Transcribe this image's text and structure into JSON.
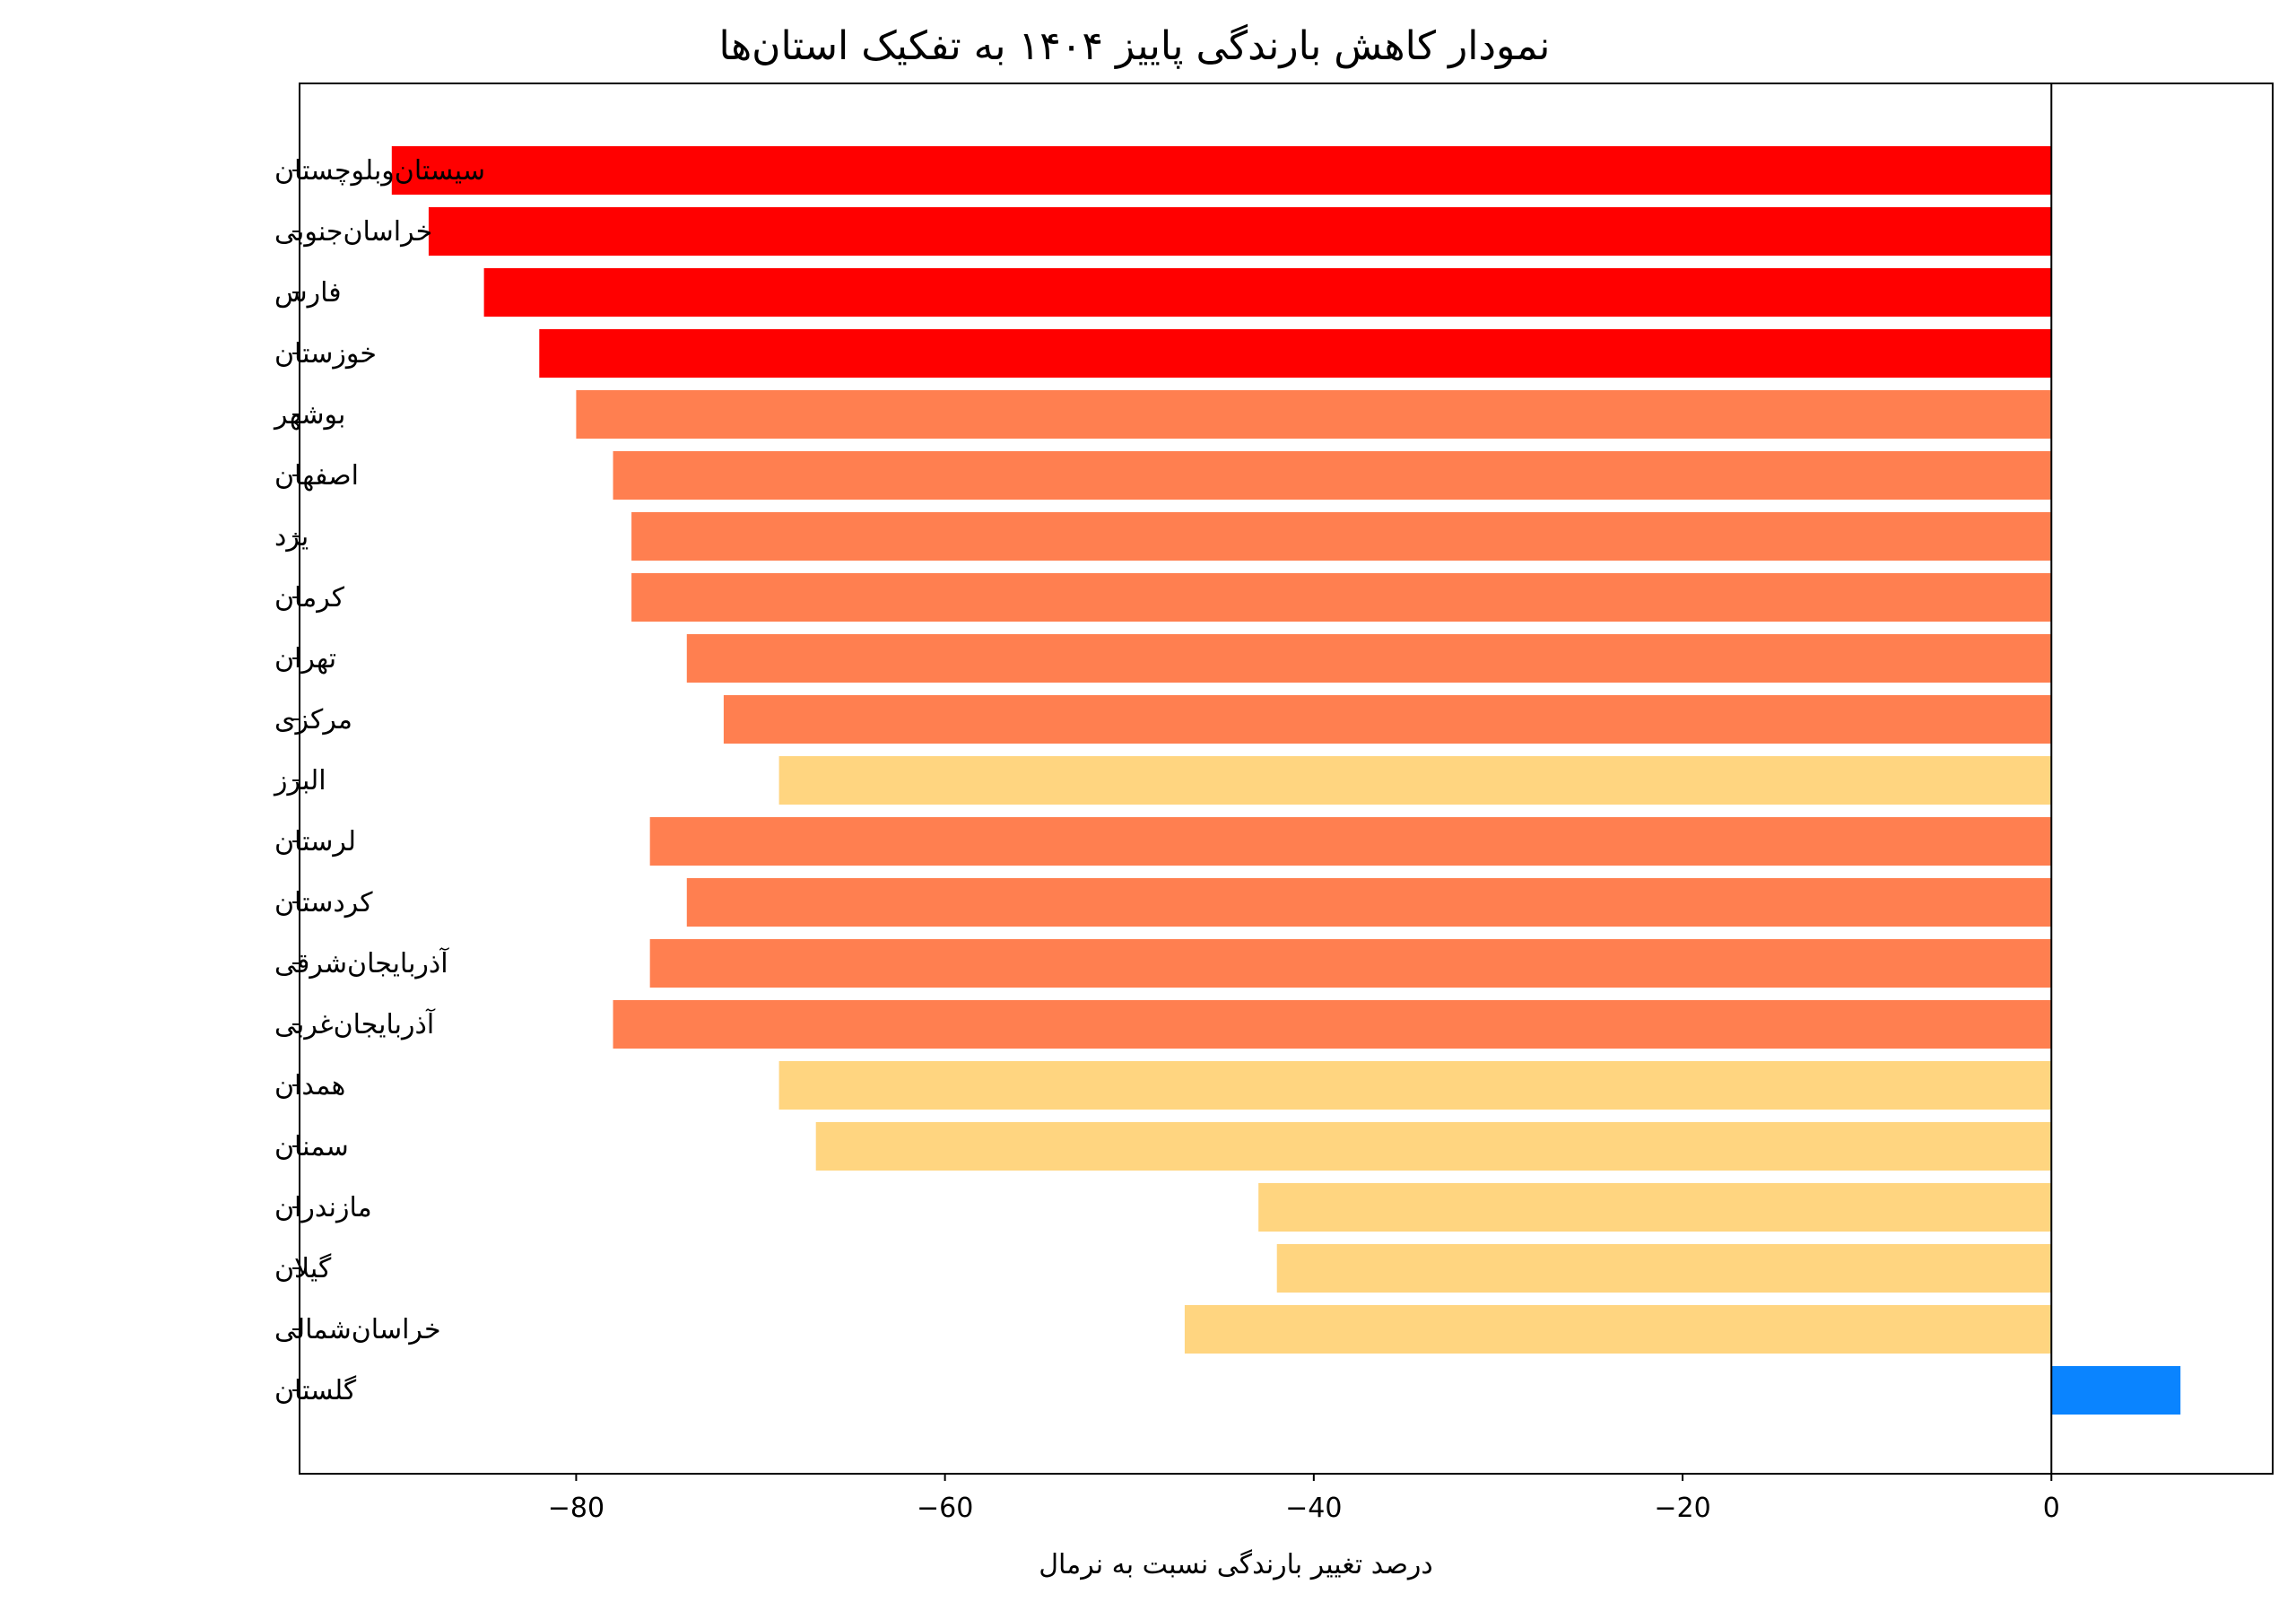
{
  "chart_data": {
    "type": "bar",
    "orientation": "horizontal",
    "title": "نمودار کاهش بارندگی پاییز ۱۴۰۴ به تفکیک استان‌ها",
    "xlabel": "درصد تغییر بارندگی نسبت به نرمال",
    "ylabel": "",
    "xlim": [
      -95,
      12
    ],
    "xticks": [
      -80,
      -60,
      -40,
      -20,
      0
    ],
    "xtick_labels": [
      "−80",
      "−60",
      "−40",
      "−20",
      "0"
    ],
    "zero_line": true,
    "grid": false,
    "categories": [
      "سیستان‌وبلوچستان",
      "خراسان‌جنوبی",
      "فارس",
      "خوزستان",
      "بوشهر",
      "اصفهان",
      "یزد",
      "کرمان",
      "تهران",
      "مرکزی",
      "البرز",
      "لرستان",
      "کردستان",
      "آذربایجان‌شرقی",
      "آذربایجان‌غربی",
      "همدان",
      "سمنان",
      "مازندران",
      "گیلان",
      "خراسان‌شمالی",
      "گلستان"
    ],
    "values": [
      -90,
      -88,
      -85,
      -82,
      -80,
      -78,
      -77,
      -77,
      -74,
      -72,
      -69,
      -76,
      -74,
      -76,
      -78,
      -69,
      -67,
      -43,
      -42,
      -47,
      7
    ],
    "colors": [
      "#ff0000",
      "#ff0000",
      "#ff0000",
      "#ff0000",
      "#ff7f50",
      "#ff7f50",
      "#ff7f50",
      "#ff7f50",
      "#ff7f50",
      "#ff7f50",
      "#ffd580",
      "#ff7f50",
      "#ff7f50",
      "#ff7f50",
      "#ff7f50",
      "#ffd580",
      "#ffd580",
      "#ffd580",
      "#ffd580",
      "#ffd580",
      "#0a84ff"
    ]
  }
}
